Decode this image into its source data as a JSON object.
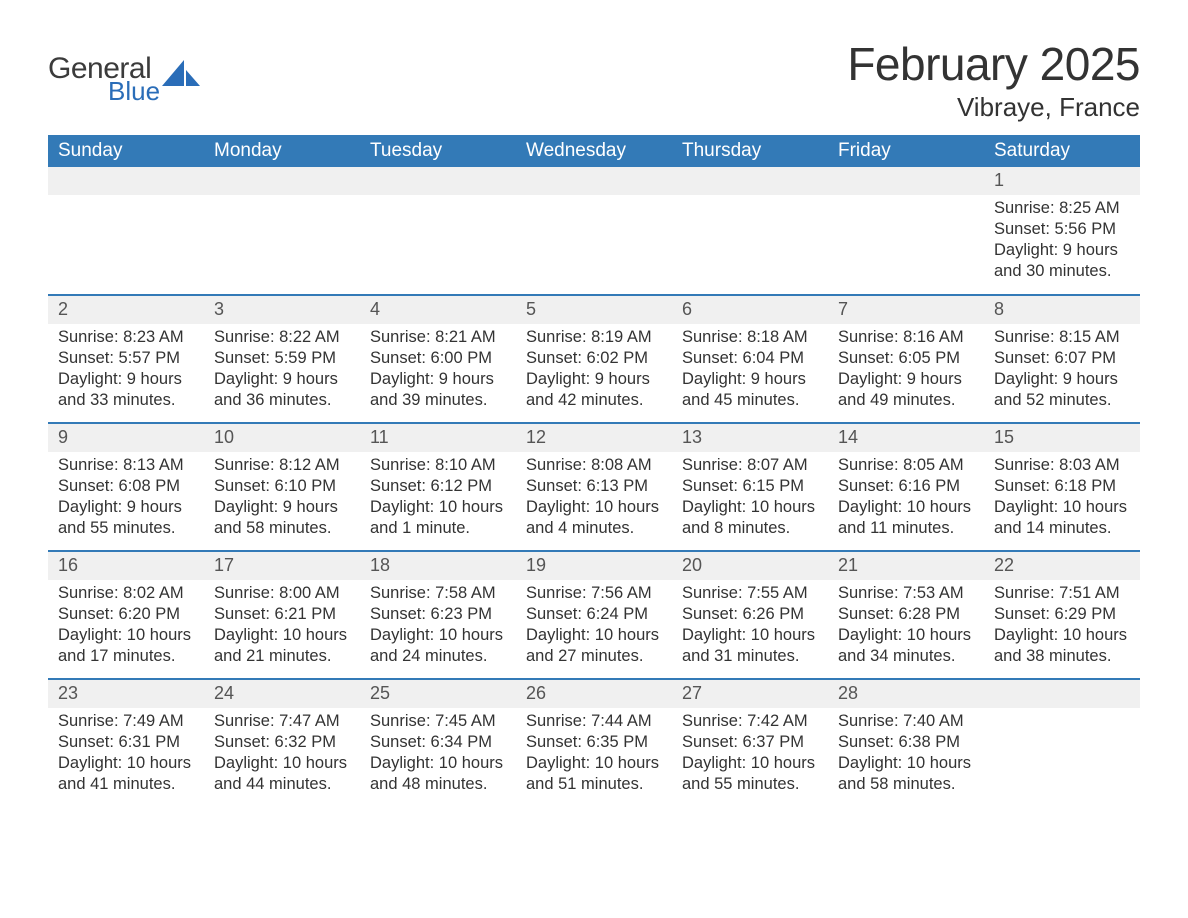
{
  "brand": {
    "general": "General",
    "blue": "Blue",
    "accent_color": "#2a6db8"
  },
  "header": {
    "title": "February 2025",
    "location": "Vibraye, France"
  },
  "colors": {
    "header_bg": "#337ab7",
    "header_text": "#ffffff",
    "row_sep": "#337ab7",
    "daynum_bg": "#f0f0f0",
    "body_text": "#333333",
    "page_bg": "#ffffff"
  },
  "days_of_week": [
    "Sunday",
    "Monday",
    "Tuesday",
    "Wednesday",
    "Thursday",
    "Friday",
    "Saturday"
  ],
  "weeks": [
    [
      null,
      null,
      null,
      null,
      null,
      null,
      {
        "n": "1",
        "sunrise": "Sunrise: 8:25 AM",
        "sunset": "Sunset: 5:56 PM",
        "daylight": "Daylight: 9 hours and 30 minutes."
      }
    ],
    [
      {
        "n": "2",
        "sunrise": "Sunrise: 8:23 AM",
        "sunset": "Sunset: 5:57 PM",
        "daylight": "Daylight: 9 hours and 33 minutes."
      },
      {
        "n": "3",
        "sunrise": "Sunrise: 8:22 AM",
        "sunset": "Sunset: 5:59 PM",
        "daylight": "Daylight: 9 hours and 36 minutes."
      },
      {
        "n": "4",
        "sunrise": "Sunrise: 8:21 AM",
        "sunset": "Sunset: 6:00 PM",
        "daylight": "Daylight: 9 hours and 39 minutes."
      },
      {
        "n": "5",
        "sunrise": "Sunrise: 8:19 AM",
        "sunset": "Sunset: 6:02 PM",
        "daylight": "Daylight: 9 hours and 42 minutes."
      },
      {
        "n": "6",
        "sunrise": "Sunrise: 8:18 AM",
        "sunset": "Sunset: 6:04 PM",
        "daylight": "Daylight: 9 hours and 45 minutes."
      },
      {
        "n": "7",
        "sunrise": "Sunrise: 8:16 AM",
        "sunset": "Sunset: 6:05 PM",
        "daylight": "Daylight: 9 hours and 49 minutes."
      },
      {
        "n": "8",
        "sunrise": "Sunrise: 8:15 AM",
        "sunset": "Sunset: 6:07 PM",
        "daylight": "Daylight: 9 hours and 52 minutes."
      }
    ],
    [
      {
        "n": "9",
        "sunrise": "Sunrise: 8:13 AM",
        "sunset": "Sunset: 6:08 PM",
        "daylight": "Daylight: 9 hours and 55 minutes."
      },
      {
        "n": "10",
        "sunrise": "Sunrise: 8:12 AM",
        "sunset": "Sunset: 6:10 PM",
        "daylight": "Daylight: 9 hours and 58 minutes."
      },
      {
        "n": "11",
        "sunrise": "Sunrise: 8:10 AM",
        "sunset": "Sunset: 6:12 PM",
        "daylight": "Daylight: 10 hours and 1 minute."
      },
      {
        "n": "12",
        "sunrise": "Sunrise: 8:08 AM",
        "sunset": "Sunset: 6:13 PM",
        "daylight": "Daylight: 10 hours and 4 minutes."
      },
      {
        "n": "13",
        "sunrise": "Sunrise: 8:07 AM",
        "sunset": "Sunset: 6:15 PM",
        "daylight": "Daylight: 10 hours and 8 minutes."
      },
      {
        "n": "14",
        "sunrise": "Sunrise: 8:05 AM",
        "sunset": "Sunset: 6:16 PM",
        "daylight": "Daylight: 10 hours and 11 minutes."
      },
      {
        "n": "15",
        "sunrise": "Sunrise: 8:03 AM",
        "sunset": "Sunset: 6:18 PM",
        "daylight": "Daylight: 10 hours and 14 minutes."
      }
    ],
    [
      {
        "n": "16",
        "sunrise": "Sunrise: 8:02 AM",
        "sunset": "Sunset: 6:20 PM",
        "daylight": "Daylight: 10 hours and 17 minutes."
      },
      {
        "n": "17",
        "sunrise": "Sunrise: 8:00 AM",
        "sunset": "Sunset: 6:21 PM",
        "daylight": "Daylight: 10 hours and 21 minutes."
      },
      {
        "n": "18",
        "sunrise": "Sunrise: 7:58 AM",
        "sunset": "Sunset: 6:23 PM",
        "daylight": "Daylight: 10 hours and 24 minutes."
      },
      {
        "n": "19",
        "sunrise": "Sunrise: 7:56 AM",
        "sunset": "Sunset: 6:24 PM",
        "daylight": "Daylight: 10 hours and 27 minutes."
      },
      {
        "n": "20",
        "sunrise": "Sunrise: 7:55 AM",
        "sunset": "Sunset: 6:26 PM",
        "daylight": "Daylight: 10 hours and 31 minutes."
      },
      {
        "n": "21",
        "sunrise": "Sunrise: 7:53 AM",
        "sunset": "Sunset: 6:28 PM",
        "daylight": "Daylight: 10 hours and 34 minutes."
      },
      {
        "n": "22",
        "sunrise": "Sunrise: 7:51 AM",
        "sunset": "Sunset: 6:29 PM",
        "daylight": "Daylight: 10 hours and 38 minutes."
      }
    ],
    [
      {
        "n": "23",
        "sunrise": "Sunrise: 7:49 AM",
        "sunset": "Sunset: 6:31 PM",
        "daylight": "Daylight: 10 hours and 41 minutes."
      },
      {
        "n": "24",
        "sunrise": "Sunrise: 7:47 AM",
        "sunset": "Sunset: 6:32 PM",
        "daylight": "Daylight: 10 hours and 44 minutes."
      },
      {
        "n": "25",
        "sunrise": "Sunrise: 7:45 AM",
        "sunset": "Sunset: 6:34 PM",
        "daylight": "Daylight: 10 hours and 48 minutes."
      },
      {
        "n": "26",
        "sunrise": "Sunrise: 7:44 AM",
        "sunset": "Sunset: 6:35 PM",
        "daylight": "Daylight: 10 hours and 51 minutes."
      },
      {
        "n": "27",
        "sunrise": "Sunrise: 7:42 AM",
        "sunset": "Sunset: 6:37 PM",
        "daylight": "Daylight: 10 hours and 55 minutes."
      },
      {
        "n": "28",
        "sunrise": "Sunrise: 7:40 AM",
        "sunset": "Sunset: 6:38 PM",
        "daylight": "Daylight: 10 hours and 58 minutes."
      },
      null
    ]
  ]
}
